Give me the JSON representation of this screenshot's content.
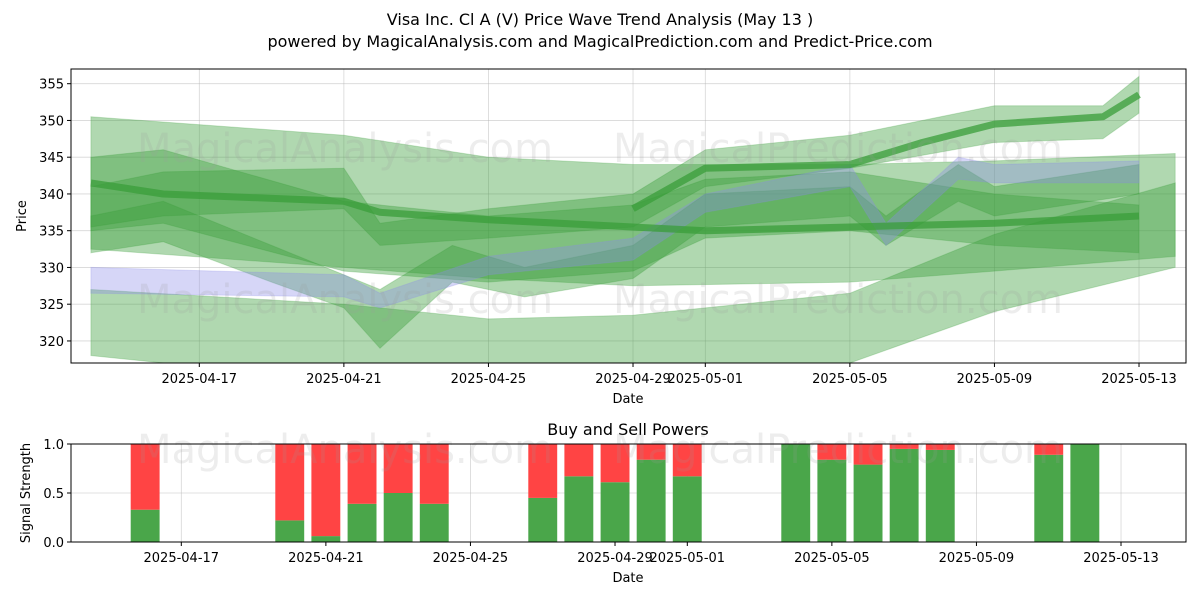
{
  "title_line1": "Visa Inc. Cl A (V) Price Wave Trend Analysis (May 13 )",
  "title_line2": "powered by MagicalAnalysis.com and MagicalPrediction.com and Predict-Price.com",
  "watermarks": [
    "MagicalAnalysis.com",
    "MagicalPrediction.com"
  ],
  "colors": {
    "wave_green": "#3a9e3a",
    "wave_blue": "#8a8ae8",
    "buy": "#4aa64a",
    "sell": "#ff4444"
  },
  "chart_data": [
    {
      "type": "area",
      "title": "",
      "xlabel": "Date",
      "ylabel": "Price",
      "xlim": [
        "2025-04-14",
        "2025-05-14"
      ],
      "ylim": [
        317,
        357
      ],
      "x_ticks": [
        "2025-04-17",
        "2025-04-21",
        "2025-04-25",
        "2025-04-29",
        "2025-05-01",
        "2025-05-05",
        "2025-05-09",
        "2025-05-13"
      ],
      "y_ticks": [
        320,
        325,
        330,
        335,
        340,
        345,
        350,
        355
      ],
      "grid": true,
      "series": [
        {
          "color": "green",
          "alpha": 0.4,
          "upper": [
            [
              "2025-04-14",
              350.5
            ],
            [
              "2025-04-21",
              348
            ],
            [
              "2025-04-25",
              345
            ],
            [
              "2025-04-29",
              344
            ],
            [
              "2025-05-05",
              344
            ],
            [
              "2025-05-09",
              344.5
            ],
            [
              "2025-05-14",
              345.5
            ]
          ],
          "lower": [
            [
              "2025-04-14",
              332.5
            ],
            [
              "2025-04-21",
              330
            ],
            [
              "2025-04-25",
              328.5
            ],
            [
              "2025-04-29",
              327.5
            ],
            [
              "2025-05-05",
              328
            ],
            [
              "2025-05-09",
              329.5
            ],
            [
              "2025-05-14",
              331.5
            ]
          ]
        },
        {
          "color": "green",
          "alpha": 0.4,
          "upper": [
            [
              "2025-04-14",
              327
            ],
            [
              "2025-04-21",
              325
            ],
            [
              "2025-04-25",
              323
            ],
            [
              "2025-04-29",
              323.5
            ],
            [
              "2025-05-05",
              326.5
            ],
            [
              "2025-05-09",
              334.5
            ],
            [
              "2025-05-14",
              341.5
            ]
          ],
          "lower": [
            [
              "2025-04-14",
              318
            ],
            [
              "2025-04-21",
              314.5
            ],
            [
              "2025-04-25",
              313
            ],
            [
              "2025-04-29",
              313.5
            ],
            [
              "2025-05-05",
              317
            ],
            [
              "2025-05-09",
              324
            ],
            [
              "2025-05-14",
              330
            ]
          ]
        },
        {
          "color": "green",
          "alpha": 0.4,
          "upper": [
            [
              "2025-04-14",
              345
            ],
            [
              "2025-04-16",
              346
            ],
            [
              "2025-04-21",
              339
            ],
            [
              "2025-04-25",
              337
            ],
            [
              "2025-04-29",
              338.5
            ],
            [
              "2025-05-01",
              342
            ],
            [
              "2025-05-05",
              343
            ],
            [
              "2025-05-09",
              340
            ],
            [
              "2025-05-13",
              338.5
            ]
          ],
          "lower": [
            [
              "2025-04-14",
              335
            ],
            [
              "2025-04-16",
              336
            ],
            [
              "2025-04-21",
              329.5
            ],
            [
              "2025-04-25",
              328
            ],
            [
              "2025-04-29",
              329.5
            ],
            [
              "2025-05-01",
              334
            ],
            [
              "2025-05-05",
              335
            ],
            [
              "2025-05-09",
              333
            ],
            [
              "2025-05-13",
              332
            ]
          ]
        },
        {
          "color": "green",
          "alpha": 0.4,
          "upper": [
            [
              "2025-04-14",
              341
            ],
            [
              "2025-04-16",
              343
            ],
            [
              "2025-04-21",
              343.5
            ],
            [
              "2025-04-22",
              336
            ],
            [
              "2025-04-25",
              338
            ],
            [
              "2025-04-29",
              340
            ],
            [
              "2025-05-01",
              346
            ],
            [
              "2025-05-05",
              348
            ],
            [
              "2025-05-09",
              352
            ],
            [
              "2025-05-12",
              352
            ],
            [
              "2025-05-13",
              356
            ]
          ],
          "lower": [
            [
              "2025-04-14",
              335.5
            ],
            [
              "2025-04-16",
              337
            ],
            [
              "2025-04-21",
              338
            ],
            [
              "2025-04-22",
              333
            ],
            [
              "2025-04-25",
              334
            ],
            [
              "2025-04-29",
              335.5
            ],
            [
              "2025-05-01",
              341
            ],
            [
              "2025-05-05",
              343.5
            ],
            [
              "2025-05-09",
              347
            ],
            [
              "2025-05-12",
              347.5
            ],
            [
              "2025-05-13",
              351
            ]
          ]
        },
        {
          "color": "green",
          "alpha": 0.4,
          "upper": [
            [
              "2025-04-14",
              337
            ],
            [
              "2025-04-16",
              339
            ],
            [
              "2025-04-19",
              333
            ],
            [
              "2025-04-21",
              329
            ],
            [
              "2025-04-22",
              327
            ],
            [
              "2025-04-24",
              333
            ],
            [
              "2025-04-26",
              330
            ],
            [
              "2025-04-29",
              333
            ],
            [
              "2025-05-01",
              340
            ],
            [
              "2025-05-05",
              341
            ],
            [
              "2025-05-06",
              337
            ],
            [
              "2025-05-08",
              344
            ],
            [
              "2025-05-09",
              341
            ],
            [
              "2025-05-13",
              344
            ]
          ],
          "lower": [
            [
              "2025-04-14",
              332
            ],
            [
              "2025-04-16",
              333.5
            ],
            [
              "2025-04-19",
              328
            ],
            [
              "2025-04-21",
              324.5
            ],
            [
              "2025-04-22",
              319
            ],
            [
              "2025-04-24",
              328
            ],
            [
              "2025-04-26",
              326
            ],
            [
              "2025-04-29",
              328.5
            ],
            [
              "2025-05-01",
              335.5
            ],
            [
              "2025-05-05",
              337
            ],
            [
              "2025-05-06",
              333
            ],
            [
              "2025-05-08",
              339
            ],
            [
              "2025-05-09",
              337
            ],
            [
              "2025-05-13",
              340
            ]
          ]
        },
        {
          "color": "blue",
          "alpha": 0.35,
          "upper": [
            [
              "2025-04-14",
              330
            ],
            [
              "2025-04-21",
              329
            ],
            [
              "2025-04-22",
              326.5
            ],
            [
              "2025-04-25",
              331.5
            ],
            [
              "2025-04-29",
              334
            ],
            [
              "2025-05-01",
              340
            ],
            [
              "2025-05-05",
              344
            ],
            [
              "2025-05-06",
              336
            ],
            [
              "2025-05-08",
              345
            ],
            [
              "2025-05-09",
              344
            ],
            [
              "2025-05-13",
              344.5
            ]
          ],
          "lower": [
            [
              "2025-04-14",
              326.5
            ],
            [
              "2025-04-21",
              326
            ],
            [
              "2025-04-22",
              324.5
            ],
            [
              "2025-04-25",
              329
            ],
            [
              "2025-04-29",
              331
            ],
            [
              "2025-05-01",
              337.5
            ],
            [
              "2025-05-05",
              341
            ],
            [
              "2025-05-06",
              333
            ],
            [
              "2025-05-08",
              342
            ],
            [
              "2025-05-09",
              341.5
            ],
            [
              "2025-05-13",
              341.5
            ]
          ]
        }
      ],
      "lines": [
        {
          "color": "green",
          "points": [
            [
              "2025-04-14",
              341.5
            ],
            [
              "2025-04-16",
              340
            ],
            [
              "2025-04-21",
              339
            ],
            [
              "2025-04-22",
              337.5
            ],
            [
              "2025-04-25",
              336.5
            ],
            [
              "2025-04-29",
              335.5
            ],
            [
              "2025-05-01",
              335
            ],
            [
              "2025-05-05",
              335.5
            ],
            [
              "2025-05-09",
              336
            ],
            [
              "2025-05-13",
              337
            ]
          ]
        },
        {
          "color": "green",
          "points": [
            [
              "2025-04-29",
              338
            ],
            [
              "2025-05-01",
              343.5
            ],
            [
              "2025-05-05",
              344
            ],
            [
              "2025-05-07",
              347
            ],
            [
              "2025-05-09",
              349.5
            ],
            [
              "2025-05-12",
              350.5
            ],
            [
              "2025-05-13",
              353.5
            ]
          ]
        }
      ]
    },
    {
      "type": "bar",
      "title": "Buy and Sell Powers",
      "xlabel": "Date",
      "ylabel": "Signal Strength",
      "ylim": [
        0,
        1.0
      ],
      "y_ticks": [
        "0.0",
        "0.5",
        "1.0"
      ],
      "x_ticks": [
        "2025-04-17",
        "2025-04-21",
        "2025-04-25",
        "2025-04-29",
        "2025-05-01",
        "2025-05-05",
        "2025-05-09",
        "2025-05-13"
      ],
      "grid": true,
      "x": [
        "2025-04-16",
        "2025-04-20",
        "2025-04-21",
        "2025-04-22",
        "2025-04-23",
        "2025-04-24",
        "2025-04-27",
        "2025-04-28",
        "2025-04-29",
        "2025-04-30",
        "2025-05-01",
        "2025-05-04",
        "2025-05-05",
        "2025-05-06",
        "2025-05-07",
        "2025-05-08",
        "2025-05-11",
        "2025-05-12"
      ],
      "series": [
        {
          "name": "Buy",
          "values": [
            0.33,
            0.22,
            0.06,
            0.39,
            0.5,
            0.39,
            0.45,
            0.67,
            0.61,
            0.84,
            0.67,
            1.0,
            0.84,
            0.79,
            0.95,
            0.94,
            0.89,
            1.0
          ]
        },
        {
          "name": "Sell",
          "values": [
            0.67,
            0.78,
            0.94,
            0.61,
            0.5,
            0.61,
            0.55,
            0.33,
            0.39,
            0.16,
            0.33,
            0.0,
            0.16,
            0.21,
            0.05,
            0.06,
            0.11,
            0.0
          ]
        }
      ]
    }
  ]
}
